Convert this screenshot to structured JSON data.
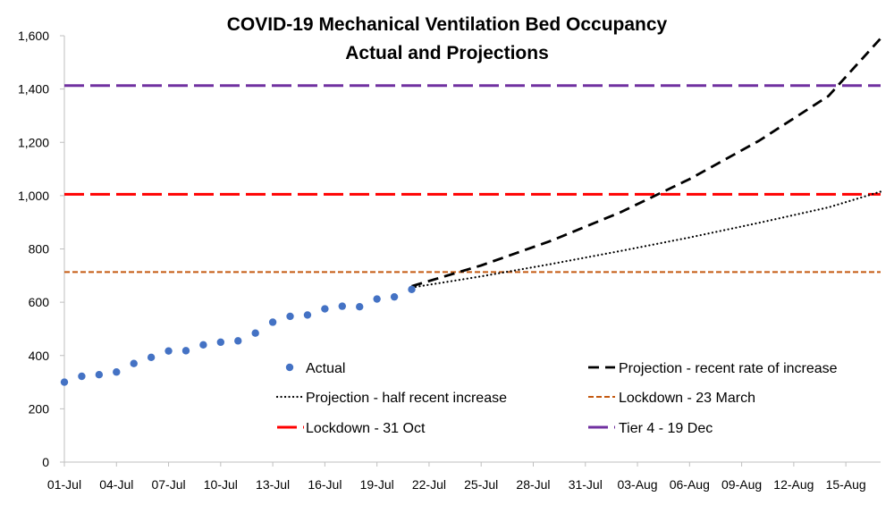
{
  "chart_data": {
    "type": "line",
    "title": "COVID-19 Mechanical Ventilation Bed Occupancy",
    "subtitle": "Actual and Projections",
    "xlabel": "",
    "ylabel": "",
    "ylim": [
      0,
      1600
    ],
    "y_ticks": [
      0,
      200,
      400,
      600,
      800,
      1000,
      1200,
      1400,
      1600
    ],
    "y_tick_labels": [
      "0",
      "200",
      "400",
      "600",
      "800",
      "1,000",
      "1,200",
      "1,400",
      "1,600"
    ],
    "x_range": [
      "01-Jul",
      "17-Aug"
    ],
    "x_ticks": [
      "01-Jul",
      "04-Jul",
      "07-Jul",
      "10-Jul",
      "13-Jul",
      "16-Jul",
      "19-Jul",
      "22-Jul",
      "25-Jul",
      "28-Jul",
      "31-Jul",
      "03-Aug",
      "06-Aug",
      "09-Aug",
      "12-Aug",
      "15-Aug"
    ],
    "grid": false,
    "legend_position": "bottom-inside",
    "colors": {
      "actual": "#4472C4",
      "projection_recent": "#000000",
      "projection_half": "#000000",
      "lockdown_march": "#C55A11",
      "lockdown_oct": "#FF0000",
      "tier4": "#7030A0"
    },
    "series": [
      {
        "name": "Actual",
        "style": "markers",
        "x": [
          "01-Jul",
          "02-Jul",
          "03-Jul",
          "04-Jul",
          "05-Jul",
          "06-Jul",
          "07-Jul",
          "08-Jul",
          "09-Jul",
          "10-Jul",
          "11-Jul",
          "12-Jul",
          "13-Jul",
          "14-Jul",
          "15-Jul",
          "16-Jul",
          "17-Jul",
          "18-Jul",
          "19-Jul",
          "20-Jul",
          "21-Jul"
        ],
        "values": [
          300,
          322,
          328,
          338,
          370,
          393,
          417,
          418,
          440,
          450,
          455,
          484,
          525,
          547,
          552,
          575,
          585,
          583,
          612,
          620,
          648
        ]
      },
      {
        "name": "Projection - recent rate of increase",
        "style": "dashed",
        "x": [
          "21-Jul",
          "25-Jul",
          "29-Jul",
          "02-Aug",
          "06-Aug",
          "10-Aug",
          "14-Aug",
          "17-Aug"
        ],
        "values": [
          660,
          738,
          830,
          937,
          1062,
          1206,
          1374,
          1590
        ]
      },
      {
        "name": "Projection - half recent increase",
        "style": "dotted",
        "x": [
          "21-Jul",
          "25-Jul",
          "29-Jul",
          "02-Aug",
          "06-Aug",
          "10-Aug",
          "14-Aug",
          "17-Aug"
        ],
        "values": [
          655,
          697,
          743,
          792,
          843,
          898,
          956,
          1015
        ]
      },
      {
        "name": "Lockdown - 23 March",
        "style": "dashed-short",
        "x": [
          "01-Jul",
          "17-Aug"
        ],
        "values": [
          713,
          713
        ]
      },
      {
        "name": "Lockdown - 31 Oct",
        "style": "dashed-long",
        "x": [
          "01-Jul",
          "17-Aug"
        ],
        "values": [
          1005,
          1005
        ]
      },
      {
        "name": "Tier 4 - 19 Dec",
        "style": "dashed-long",
        "x": [
          "01-Jul",
          "17-Aug"
        ],
        "values": [
          1413,
          1413
        ]
      }
    ],
    "legend": [
      {
        "label": "Actual",
        "series": 0
      },
      {
        "label": "Projection - recent rate of increase",
        "series": 1
      },
      {
        "label": "Projection - half recent increase",
        "series": 2
      },
      {
        "label": "Lockdown - 23 March",
        "series": 3
      },
      {
        "label": "Lockdown - 31 Oct",
        "series": 4
      },
      {
        "label": "Tier 4 - 19 Dec",
        "series": 5
      }
    ]
  }
}
